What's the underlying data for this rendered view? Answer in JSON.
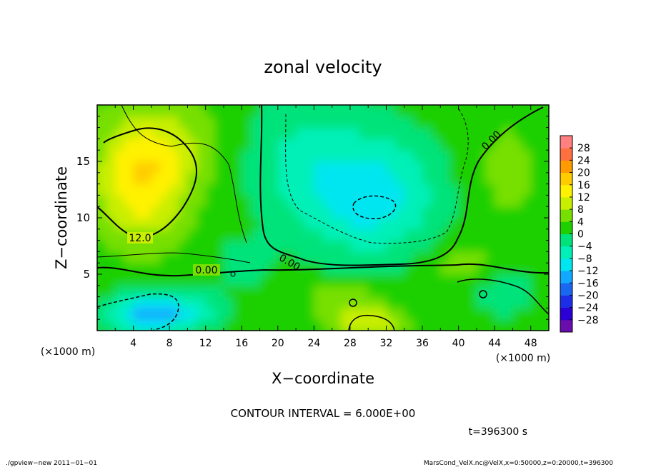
{
  "chart_data": {
    "type": "heatmap",
    "title": "zonal velocity",
    "xlabel": "X−coordinate",
    "ylabel": "Z−coordinate",
    "x_unit_label": "(×1000 m)",
    "y_unit_label": "(×1000 m)",
    "xlim": [
      0,
      50
    ],
    "ylim": [
      0,
      20
    ],
    "x_ticks": [
      4,
      8,
      12,
      16,
      20,
      24,
      28,
      32,
      36,
      40,
      44,
      48
    ],
    "y_ticks": [
      5,
      10,
      15
    ],
    "colorbar": {
      "levels": [
        -32,
        -28,
        -24,
        -20,
        -16,
        -12,
        -8,
        -4,
        0,
        4,
        8,
        12,
        16,
        20,
        24,
        28,
        32
      ],
      "tick_labels": [
        "28",
        "24",
        "20",
        "16",
        "12",
        "8",
        "4",
        "0",
        "−4",
        "−8",
        "−12",
        "−16",
        "−20",
        "−24",
        "−28"
      ],
      "colors": [
        "#6a0dad",
        "#2a00d4",
        "#1c2fe6",
        "#1a68f0",
        "#12a8ff",
        "#00e6f0",
        "#00f0b8",
        "#00e37a",
        "#1fd000",
        "#77e000",
        "#c8ee00",
        "#fff200",
        "#ffcc00",
        "#ff9a00",
        "#ff7040",
        "#ff8080"
      ]
    },
    "contour_interval_text": "CONTOUR INTERVAL = 6.000E+00",
    "time_text": "t=396300 s",
    "contour_labels": [
      "12.0",
      "0.00",
      "0.00",
      "0.00"
    ],
    "features": [
      {
        "kind": "jet-max",
        "x": 5,
        "z": 13,
        "value": 14
      },
      {
        "kind": "jet-min",
        "x": 30,
        "z": 11,
        "value": -12
      },
      {
        "kind": "low-level-min",
        "x": 6,
        "z": 2,
        "value": -15
      },
      {
        "kind": "low-level-max",
        "x": 30,
        "z": 1,
        "value": 12
      }
    ]
  },
  "footer": {
    "left": "./gpview−new  2011−01−01",
    "right": "MarsCond_VelX.nc@VelX,x=0:50000,z=0:20000,t=396300"
  }
}
